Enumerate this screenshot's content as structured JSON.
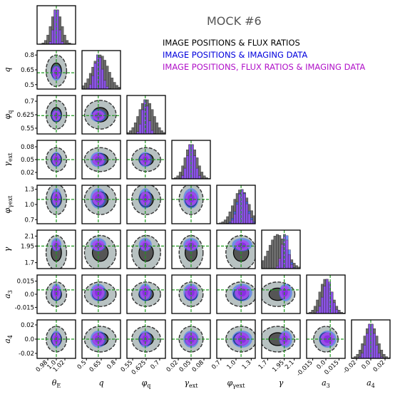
{
  "title": "MOCK #6",
  "legend": [
    {
      "label": "IMAGE POSITIONS & FLUX RATIOS",
      "color": "#000000"
    },
    {
      "label": "IMAGE POSITIONS & IMAGING DATA",
      "color": "#0000dd"
    },
    {
      "label": "IMAGE POSITIONS, FLUX RATIOS & IMAGING DATA",
      "color": "#b010c8"
    }
  ],
  "colors": {
    "flux": "#555555",
    "flux_contour": "#b8c2c2",
    "imaging": "#3366ff",
    "combined": "#a94af0",
    "truth": "#1f9a1f"
  },
  "chart_data": {
    "type": "corner",
    "parameters": [
      {
        "label": "θ_E",
        "label_main": "θ",
        "label_sub": "E",
        "ticks": [
          "0.98",
          "1.0",
          "1.02"
        ],
        "tick_values": [
          0.98,
          1.0,
          1.02
        ],
        "range": [
          0.955,
          1.045
        ],
        "truth": 1.0
      },
      {
        "label": "q",
        "label_main": "q",
        "label_sub": "",
        "ticks": [
          "0.5",
          "0.65",
          "0.8"
        ],
        "tick_values": [
          0.5,
          0.65,
          0.8
        ],
        "range": [
          0.455,
          0.845
        ],
        "truth": 0.62
      },
      {
        "label": "φ_q",
        "label_main": "φ",
        "label_sub": "q",
        "ticks": [
          "0.55",
          "0.625",
          "0.7"
        ],
        "tick_values": [
          0.55,
          0.625,
          0.7
        ],
        "range": [
          0.518,
          0.732
        ],
        "truth": 0.62
      },
      {
        "label": "γ_ext",
        "label_main": "γ",
        "label_sub": "ext",
        "ticks": [
          "0.02",
          "0.05",
          "0.08"
        ],
        "tick_values": [
          0.02,
          0.05,
          0.08
        ],
        "range": [
          0.005,
          0.095
        ],
        "truth": 0.05
      },
      {
        "label": "φ_γext",
        "label_main": "φ",
        "label_sub": "γext",
        "ticks": [
          "0.7",
          "1.0",
          "1.3"
        ],
        "tick_values": [
          0.7,
          1.0,
          1.3
        ],
        "range": [
          0.62,
          1.38
        ],
        "truth": 1.1
      },
      {
        "label": "γ",
        "label_main": "γ",
        "label_sub": "",
        "ticks": [
          "1.7",
          "1.95",
          "2.1"
        ],
        "tick_values": [
          1.7,
          1.95,
          2.1
        ],
        "range": [
          1.61,
          2.19
        ],
        "truth": 1.95
      },
      {
        "label": "a_3",
        "label_main": "a",
        "label_sub": "3",
        "ticks": [
          "-0.015",
          "0.0",
          "0.015"
        ],
        "tick_values": [
          -0.015,
          0.0,
          0.015
        ],
        "range": [
          -0.022,
          0.022
        ],
        "truth": 0.005
      },
      {
        "label": "a_4",
        "label_main": "a",
        "label_sub": "4",
        "ticks": [
          "-0.02",
          "0.0",
          "0.02"
        ],
        "tick_values": [
          -0.02,
          0.0,
          0.02
        ],
        "range": [
          -0.027,
          0.027
        ],
        "truth": 0.0
      }
    ],
    "series": [
      {
        "name": "IMAGE POSITIONS & FLUX RATIOS",
        "mean": [
          1.0,
          0.64,
          0.625,
          0.05,
          1.1,
          1.85,
          0.0,
          0.0
        ],
        "std": [
          0.012,
          0.08,
          0.04,
          0.014,
          0.15,
          0.13,
          0.007,
          0.009
        ]
      },
      {
        "name": "IMAGE POSITIONS & IMAGING DATA",
        "mean": [
          1.0,
          0.62,
          0.62,
          0.05,
          1.12,
          1.97,
          0.002,
          0.0
        ],
        "std": [
          0.006,
          0.04,
          0.018,
          0.009,
          0.1,
          0.05,
          0.005,
          0.006
        ]
      },
      {
        "name": "IMAGE POSITIONS, FLUX RATIOS & IMAGING DATA",
        "mean": [
          1.0,
          0.62,
          0.62,
          0.05,
          1.12,
          1.96,
          0.002,
          0.0
        ],
        "std": [
          0.006,
          0.04,
          0.018,
          0.009,
          0.09,
          0.05,
          0.005,
          0.006
        ]
      }
    ]
  }
}
